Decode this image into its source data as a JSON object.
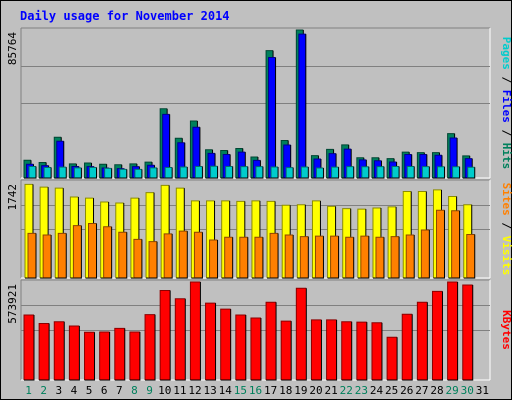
{
  "chart_data": {
    "type": "bar",
    "title": "Daily usage for November 2014",
    "categories": [
      "1",
      "2",
      "3",
      "4",
      "5",
      "6",
      "7",
      "8",
      "9",
      "10",
      "11",
      "12",
      "13",
      "14",
      "15",
      "16",
      "17",
      "18",
      "19",
      "20",
      "21",
      "22",
      "23",
      "24",
      "25",
      "26",
      "27",
      "28",
      "29",
      "30",
      "31"
    ],
    "weekend_days": [
      "1",
      "2",
      "8",
      "9",
      "15",
      "16",
      "22",
      "23",
      "29",
      "30"
    ],
    "panels": [
      {
        "id": "top",
        "ymax_label": "85764",
        "ylim": [
          0,
          85764
        ],
        "ylabel_parts": [
          {
            "text": "Pages",
            "color": "#00cccc"
          },
          {
            "text": " / ",
            "color": "#000000"
          },
          {
            "text": "Files",
            "color": "#0000ff"
          },
          {
            "text": " / ",
            "color": "#000000"
          },
          {
            "text": "Hits",
            "color": "#00805c"
          }
        ],
        "series": [
          {
            "name": "Hits",
            "color": "#00805c",
            "values": [
              10300,
              9000,
              23600,
              8200,
              8700,
              8000,
              7700,
              8200,
              9200,
              40100,
              23000,
              33000,
              16400,
              15900,
              17100,
              12200,
              73800,
              21700,
              85764,
              13000,
              16600,
              19200,
              11700,
              11700,
              11200,
              15000,
              14700,
              14700,
              25700,
              12800,
              null
            ]
          },
          {
            "name": "Files",
            "color": "#0000ff",
            "values": [
              8000,
              7200,
              21300,
              6700,
              6600,
              5800,
              5400,
              6600,
              7400,
              36900,
              20400,
              29400,
              14300,
              13600,
              15000,
              10200,
              69800,
              19100,
              83400,
              11000,
              14100,
              16700,
              10500,
              10000,
              9300,
              13600,
              13600,
              13200,
              23200,
              11200,
              null
            ]
          },
          {
            "name": "Pages",
            "color": "#00cccc",
            "values": [
              6700,
              6100,
              6300,
              5900,
              6100,
              5600,
              5000,
              5000,
              5900,
              6100,
              6400,
              6700,
              6800,
              6700,
              6600,
              6600,
              6400,
              6000,
              6400,
              5800,
              6300,
              6600,
              6500,
              6600,
              6700,
              6700,
              6600,
              6500,
              6500,
              6200,
              null
            ]
          }
        ]
      },
      {
        "id": "middle",
        "ymax_label": "1742",
        "ylim": [
          0,
          1742
        ],
        "ylabel_parts": [
          {
            "text": "Sites",
            "color": "#ff8000"
          },
          {
            "text": " / ",
            "color": "#000000"
          },
          {
            "text": "Visits",
            "color": "#ffff00"
          }
        ],
        "series": [
          {
            "name": "Visits",
            "color": "#ffff00",
            "values": [
              1700,
              1650,
              1630,
              1470,
              1450,
              1380,
              1360,
              1450,
              1550,
              1680,
              1630,
              1400,
              1400,
              1400,
              1390,
              1400,
              1390,
              1320,
              1330,
              1400,
              1300,
              1260,
              1250,
              1270,
              1290,
              1570,
              1570,
              1600,
              1480,
              1330,
              null
            ]
          },
          {
            "name": "Sites",
            "color": "#ff8000",
            "values": [
              810,
              780,
              810,
              950,
              990,
              930,
              830,
              700,
              660,
              800,
              850,
              830,
              690,
              740,
              740,
              740,
              810,
              780,
              750,
              760,
              760,
              740,
              760,
              740,
              750,
              780,
              870,
              1230,
              1220,
              790,
              null
            ]
          }
        ]
      },
      {
        "id": "bottom",
        "ymax_label": "573921",
        "ylim": [
          0,
          573921
        ],
        "ylabel_parts": [
          {
            "text": "KBytes",
            "color": "#ff0000"
          }
        ],
        "series": [
          {
            "name": "KBytes",
            "color": "#ff0000",
            "values": [
              381000,
              331000,
              341000,
              316000,
              280000,
              281000,
              302000,
              281000,
              383000,
              524000,
              476000,
              577000,
              450000,
              415000,
              381000,
              363000,
              455000,
              345000,
              537000,
              352000,
              352000,
              341000,
              339000,
              335000,
              250000,
              385000,
              455000,
              519000,
              573921,
              556000,
              null
            ]
          }
        ]
      }
    ]
  }
}
